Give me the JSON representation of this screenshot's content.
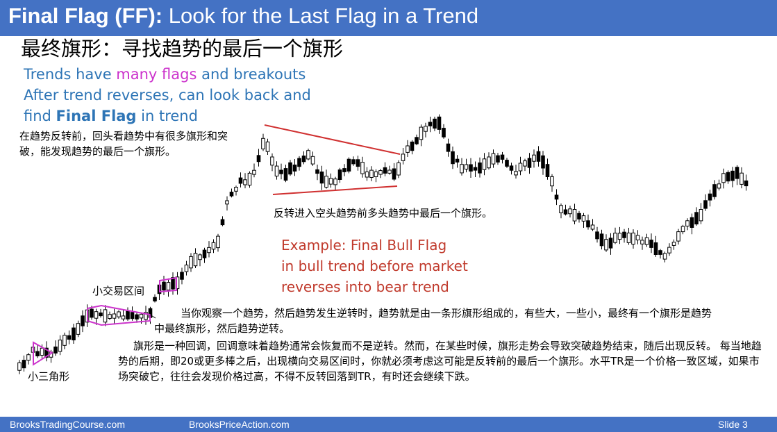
{
  "header": {
    "title_bold": "Final Flag (FF):",
    "title_rest": " Look for the Last Flag in a Trend"
  },
  "cn_title": "最终旗形：寻找趋势的最后一个旗形",
  "english_notes": {
    "line1_a": "Trends have ",
    "line1_mag": "many flags",
    "line1_b": " and breakouts",
    "line2": "After trend reverses, can look back and",
    "line3_a": "find ",
    "line3_bold": "Final Flag",
    "line3_b": " in trend"
  },
  "cn_note_left": "在趋势反转前，回头看趋势中有很多旗形和突破，能发现趋势的最后一个旗形。",
  "cn_note_mid": "反转进入空头趋势前多头趋势中最后一个旗形。",
  "example": {
    "line1": "Example: Final Bull Flag",
    "line2": "in bull trend before market",
    "line3": "reverses into bear trend"
  },
  "labels": {
    "small_trading_range": "小交易区间",
    "small_triangle": "小三角形"
  },
  "body_text": {
    "p1": "当你观察一个趋势，然后趋势发生逆转时，趋势就是由一条形旗形组成的，有些大，一些小，最终有一个旗形是趋势中最终旗形，然后趋势逆转。",
    "p2": "旗形是一种回调，回调意味着趋势通常会恢复而不是逆转。然而，在某些时候，旗形走势会导致突破趋势结束，随后出现反转。 每当地趋势的后期，即20或更多棒之后，出现横向交易区间时，你就必须考虑这可能是反转前的最后一个旗形。水平TR是一个价格一致区域，如果市场突破它，往往会发现价格过高，不得不反转回落到TR，有时还会继续下跌。"
  },
  "footer": {
    "left": "BrooksTradingCourse.com",
    "mid": "BrooksPriceAction.com",
    "right": "Slide  3"
  },
  "colors": {
    "header_bg": "#4472c4",
    "blue_text": "#2e75b6",
    "magenta": "#cc33cc",
    "red_text": "#c0392b",
    "candle": "#000000"
  }
}
